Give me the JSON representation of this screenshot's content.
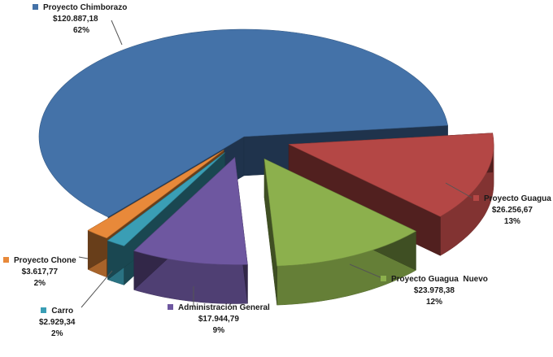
{
  "chart_data": {
    "type": "pie",
    "title": "",
    "series": [
      {
        "name": "Proyecto Chimborazo",
        "value": 120887.18,
        "value_label": "$120.887,18",
        "percent": 62,
        "percent_label": "62%",
        "color": "#4472a8"
      },
      {
        "name": "Proyecto Guagua",
        "value": 26256.67,
        "value_label": "$26.256,67",
        "percent": 13,
        "percent_label": "13%",
        "color": "#b44745"
      },
      {
        "name": "Proyecto Guagua  Nuevo",
        "value": 23978.38,
        "value_label": "$23.978,38",
        "percent": 12,
        "percent_label": "12%",
        "color": "#8cb04d"
      },
      {
        "name": "Administración General",
        "value": 17944.79,
        "value_label": "$17.944,79",
        "percent": 9,
        "percent_label": "9%",
        "color": "#6e57a0"
      },
      {
        "name": "Carro",
        "value": 2929.34,
        "value_label": "$2.929,34",
        "percent": 2,
        "percent_label": "2%",
        "color": "#3a9eb5"
      },
      {
        "name": "Proyecto Chone",
        "value": 3617.77,
        "value_label": "$3.617,77",
        "percent": 2,
        "percent_label": "2%",
        "color": "#e8893a"
      }
    ]
  }
}
